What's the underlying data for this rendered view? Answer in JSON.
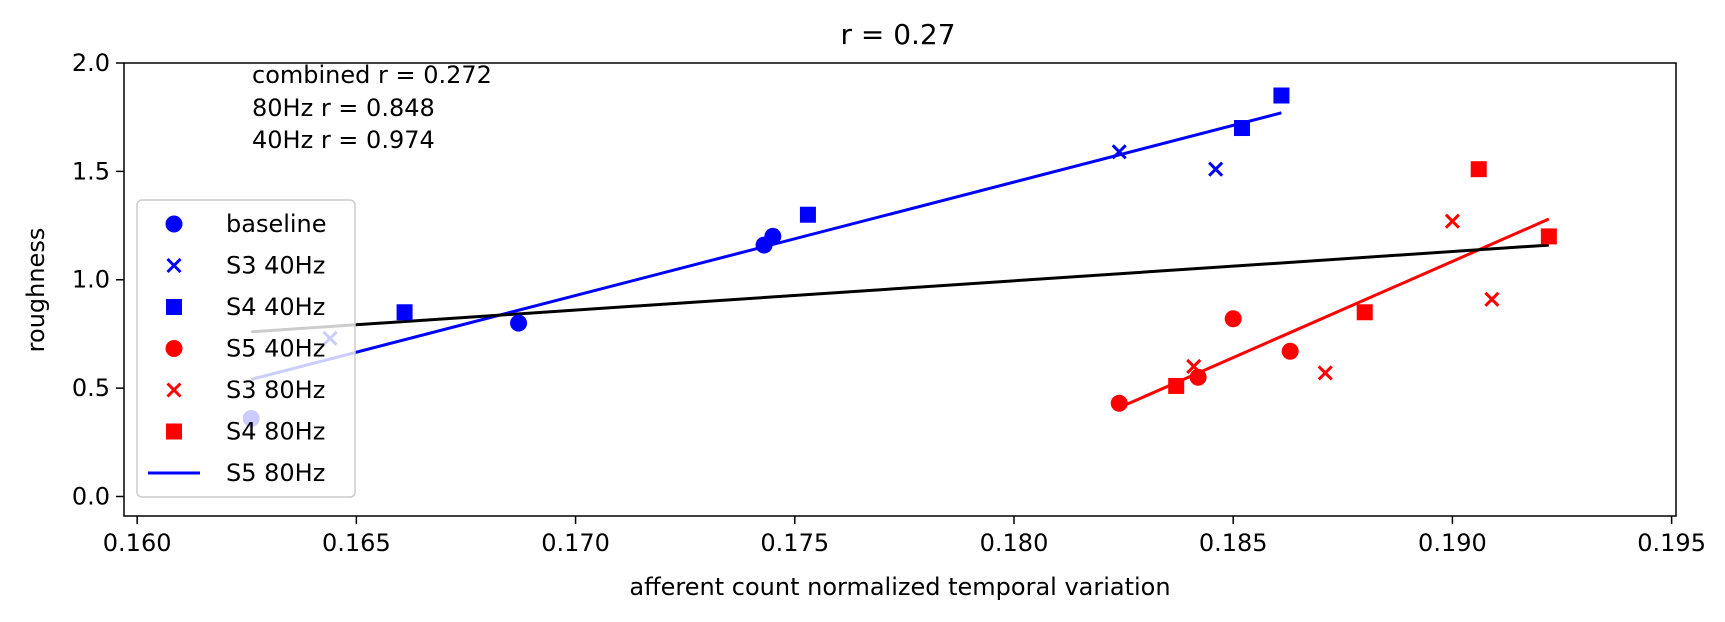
{
  "chart_data": {
    "type": "scatter",
    "title": "r = 0.27",
    "xlabel": "afferent count normalized temporal variation",
    "ylabel": "roughness",
    "xlim": [
      0.1597,
      0.1951
    ],
    "ylim": [
      -0.09,
      2.0
    ],
    "xticks": [
      "0.160",
      "0.165",
      "0.170",
      "0.175",
      "0.180",
      "0.185",
      "0.190",
      "0.195"
    ],
    "yticks": [
      "0.0",
      "0.5",
      "1.0",
      "1.5",
      "2.0"
    ],
    "grid": false,
    "legend_position": "lower-left",
    "annotations": [
      "combined r = 0.272",
      "80Hz r = 0.848",
      "40Hz r = 0.974"
    ],
    "series": [
      {
        "name": "baseline",
        "marker": "circle",
        "color": "#0000ff",
        "points": [
          [
            0.1626,
            0.36
          ],
          [
            0.1687,
            0.8
          ],
          [
            0.1743,
            1.16
          ],
          [
            0.1745,
            1.2
          ]
        ]
      },
      {
        "name": "S3 40Hz",
        "marker": "x",
        "color": "#0000ff",
        "points": [
          [
            0.1644,
            0.73
          ],
          [
            0.1824,
            1.59
          ],
          [
            0.1846,
            1.51
          ]
        ]
      },
      {
        "name": "S4 40Hz",
        "marker": "square",
        "color": "#0000ff",
        "points": [
          [
            0.1661,
            0.85
          ],
          [
            0.1753,
            1.3
          ],
          [
            0.1852,
            1.7
          ],
          [
            0.1861,
            1.85
          ]
        ]
      },
      {
        "name": "S5 40Hz",
        "marker": "circle",
        "color": "#ff0000",
        "points": [
          [
            0.1824,
            0.43
          ],
          [
            0.1842,
            0.55
          ],
          [
            0.185,
            0.82
          ],
          [
            0.1863,
            0.67
          ]
        ]
      },
      {
        "name": "S3 80Hz",
        "marker": "x",
        "color": "#ff0000",
        "points": [
          [
            0.1841,
            0.6
          ],
          [
            0.1871,
            0.57
          ],
          [
            0.19,
            1.27
          ],
          [
            0.1909,
            0.91
          ]
        ]
      },
      {
        "name": "S4 80Hz",
        "marker": "square",
        "color": "#ff0000",
        "points": [
          [
            0.1837,
            0.51
          ],
          [
            0.188,
            0.85
          ],
          [
            0.1906,
            1.51
          ],
          [
            0.1922,
            1.2
          ]
        ]
      },
      {
        "name": "S5 80Hz",
        "marker": "line",
        "color": "#0000ff",
        "points": []
      }
    ],
    "fit_lines": [
      {
        "color": "#0000ff",
        "x": [
          0.1626,
          0.1861
        ],
        "y": [
          0.54,
          1.77
        ]
      },
      {
        "color": "#ff0000",
        "x": [
          0.1824,
          0.1922
        ],
        "y": [
          0.41,
          1.28
        ]
      },
      {
        "color": "#000000",
        "x": [
          0.1626,
          0.1922
        ],
        "y": [
          0.76,
          1.16
        ]
      }
    ]
  }
}
